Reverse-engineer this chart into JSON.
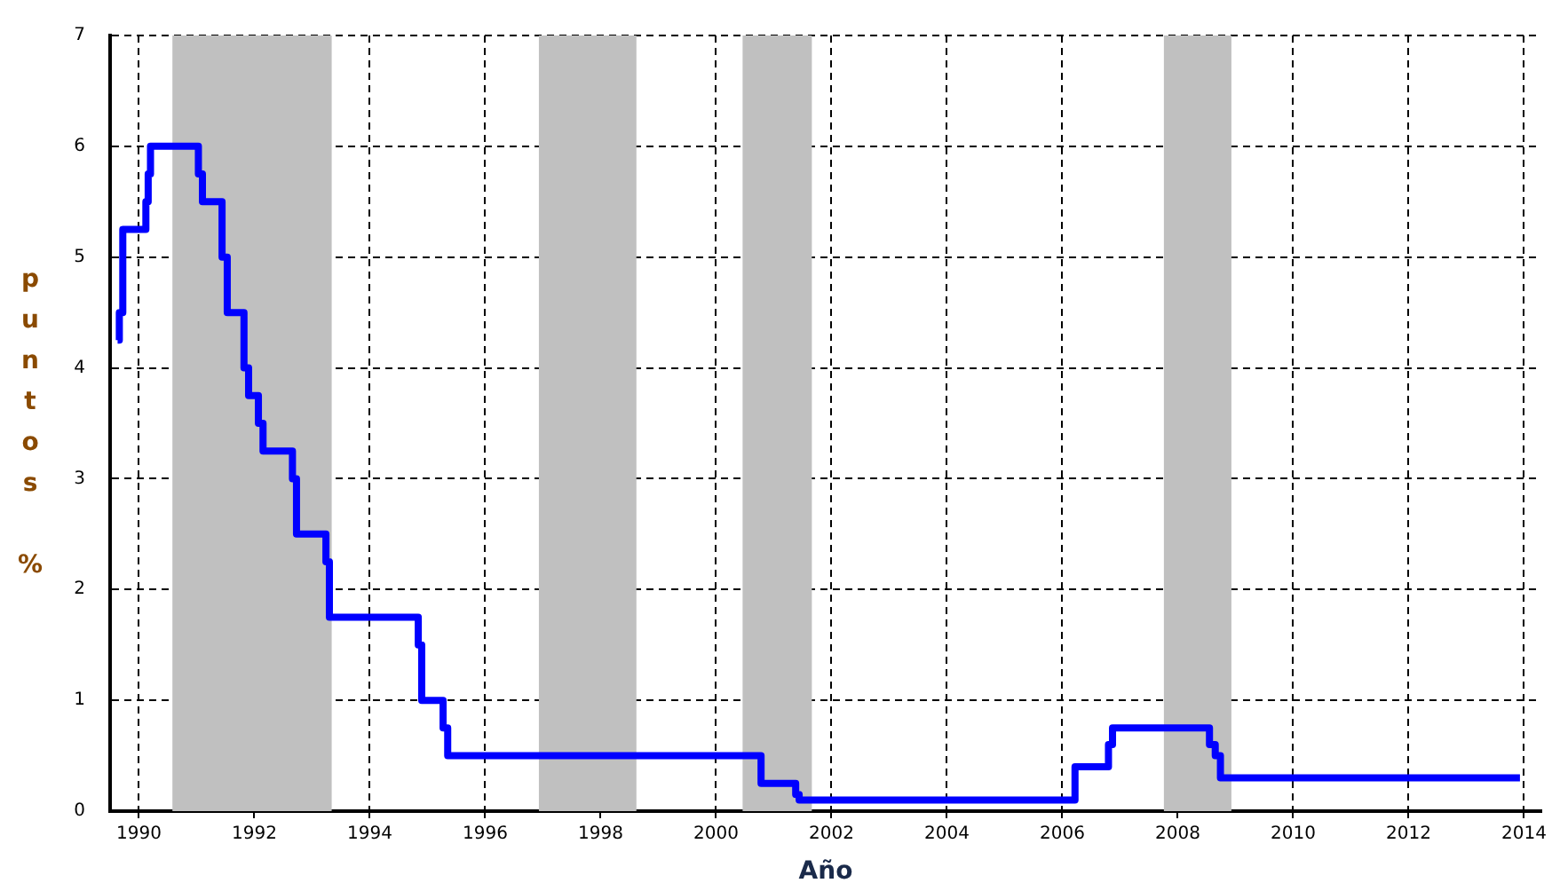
{
  "chart_data": {
    "type": "step",
    "xlabel": "Año",
    "ylabel": "puntos %",
    "series": [
      {
        "color": "#0000ff",
        "x": [
          1989.63,
          1989.66,
          1989.72,
          1990.12,
          1990.16,
          1990.2,
          1991.03,
          1991.1,
          1991.44,
          1991.53,
          1991.82,
          1991.9,
          1992.07,
          1992.15,
          1992.66,
          1992.73,
          1993.24,
          1993.3,
          1994.84,
          1994.9,
          1995.27,
          1995.35,
          2000.78,
          2001.38,
          2001.44,
          2006.22,
          2006.8,
          2006.87,
          2008.55,
          2008.65,
          2008.74,
          2013.93
        ],
        "values": [
          4.25,
          4.5,
          5.25,
          5.5,
          5.75,
          6,
          5.75,
          5.5,
          5,
          4.5,
          4,
          3.75,
          3.5,
          3.25,
          3,
          2.5,
          2.25,
          1.75,
          1.5,
          1,
          0.75,
          0.5,
          0.25,
          0.15,
          0.1,
          0.4,
          0.6,
          0.75,
          0.6,
          0.5,
          0.3,
          0.3
        ]
      }
    ],
    "xlim": [
      1989.5,
      2014.3
    ],
    "xticks": [
      1990,
      1992,
      1994,
      1996,
      1998,
      2000,
      2002,
      2004,
      2006,
      2008,
      2010,
      2012,
      2014
    ],
    "ylim": [
      0,
      7
    ],
    "yticks": [
      0,
      1,
      2,
      3,
      4,
      5,
      6,
      7
    ],
    "bands": [
      {
        "axis": "x",
        "from": 1990.58,
        "to": 1993.34,
        "color": "#c0c0c0"
      },
      {
        "axis": "x",
        "from": 1996.93,
        "to": 1998.62,
        "color": "#c0c0c0"
      },
      {
        "axis": "x",
        "from": 2000.46,
        "to": 2001.66,
        "color": "#c0c0c0"
      },
      {
        "axis": "x",
        "from": 2007.76,
        "to": 2008.93,
        "color": "#c0c0c0"
      }
    ],
    "grid": true,
    "legend": false,
    "line_style": "solid",
    "marker": "none"
  }
}
